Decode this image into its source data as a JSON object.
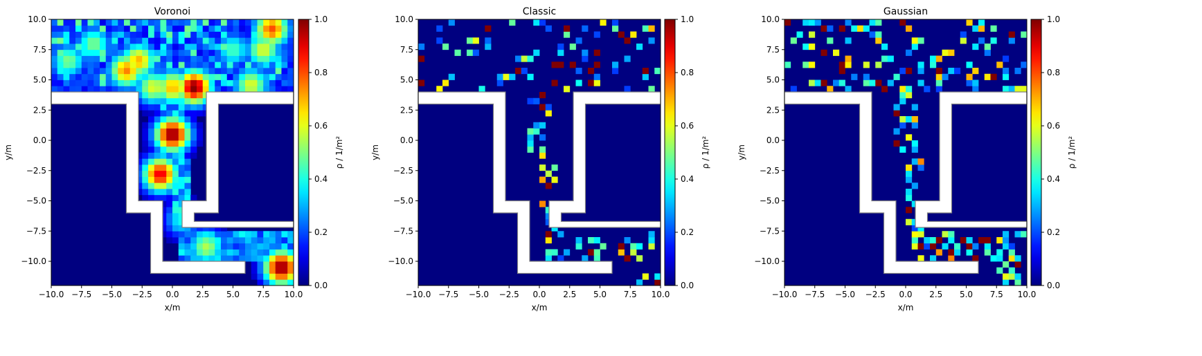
{
  "figure": {
    "title": ""
  },
  "chart_data": [
    {
      "type": "heatmap",
      "title": "Voronoi",
      "xlabel": "x/m",
      "ylabel": "y/m",
      "colorbar_label": "ρ / 1/m²",
      "xlim": [
        -10,
        10
      ],
      "ylim": [
        -12,
        10
      ],
      "xticks": [
        "−10.0",
        "−7.5",
        "−5.0",
        "−2.5",
        "0.0",
        "2.5",
        "5.0",
        "7.5",
        "10.0"
      ],
      "yticks": [
        "−10.0",
        "−7.5",
        "−5.0",
        "−2.5",
        "0.0",
        "2.5",
        "5.0",
        "7.5",
        "10.0"
      ],
      "colorbar_ticks": [
        "0.0",
        "0.2",
        "0.4",
        "0.6",
        "0.8",
        "1.0"
      ],
      "colormap": "jet",
      "vmin": 0,
      "vmax": 1,
      "grid": false,
      "hotspots": [
        {
          "x": 0.0,
          "y": 0.5,
          "v": 1.0
        },
        {
          "x": 1.8,
          "y": 4.4,
          "v": 1.0
        },
        {
          "x": -1.0,
          "y": -2.8,
          "v": 0.9
        },
        {
          "x": 9.0,
          "y": -10.5,
          "v": 1.0
        },
        {
          "x": 8.2,
          "y": 9.2,
          "v": 0.8
        },
        {
          "x": -3.8,
          "y": 5.8,
          "v": 0.75
        },
        {
          "x": -2.8,
          "y": 6.6,
          "v": 0.7
        },
        {
          "x": -6.5,
          "y": 8.0,
          "v": 0.5
        },
        {
          "x": -8.6,
          "y": 6.6,
          "v": 0.5
        },
        {
          "x": 0.0,
          "y": 4.4,
          "v": 0.7
        },
        {
          "x": -1.6,
          "y": 4.4,
          "v": 0.6
        },
        {
          "x": 7.5,
          "y": 7.5,
          "v": 0.6
        },
        {
          "x": 2.8,
          "y": -8.8,
          "v": 0.55
        },
        {
          "x": 6.5,
          "y": 4.6,
          "v": 0.6
        },
        {
          "x": 5.0,
          "y": 7.5,
          "v": 0.45
        },
        {
          "x": 0.8,
          "y": -6.5,
          "v": 0.4
        }
      ]
    },
    {
      "type": "heatmap",
      "title": "Classic",
      "xlabel": "x/m",
      "ylabel": "y/m",
      "colorbar_label": "ρ / 1/m²",
      "xlim": [
        -10,
        10
      ],
      "ylim": [
        -12,
        10
      ],
      "xticks": [
        "−10.0",
        "−7.5",
        "−5.0",
        "−2.5",
        "0.0",
        "2.5",
        "5.0",
        "7.5",
        "10.0"
      ],
      "yticks": [
        "−10.0",
        "−7.5",
        "−5.0",
        "−2.5",
        "0.0",
        "2.5",
        "5.0",
        "7.5",
        "10.0"
      ],
      "colorbar_ticks": [
        "0.0",
        "0.2",
        "0.4",
        "0.6",
        "0.8",
        "1.0"
      ],
      "colormap": "jet",
      "vmin": 0,
      "vmax": 1,
      "grid": false
    },
    {
      "type": "heatmap",
      "title": "Gaussian",
      "xlabel": "x/m",
      "ylabel": "y/m",
      "colorbar_label": "ρ / 1/m²",
      "xlim": [
        -10,
        10
      ],
      "ylim": [
        -12,
        10
      ],
      "xticks": [
        "−10.0",
        "−7.5",
        "−5.0",
        "−2.5",
        "0.0",
        "2.5",
        "5.0",
        "7.5",
        "10.0"
      ],
      "yticks": [
        "−10.0",
        "−7.5",
        "−5.0",
        "−2.5",
        "0.0",
        "2.5",
        "5.0",
        "7.5",
        "10.0"
      ],
      "colorbar_ticks": [
        "0.0",
        "0.2",
        "0.4",
        "0.6",
        "0.8",
        "1.0"
      ],
      "colormap": "jet",
      "vmin": 0,
      "vmax": 1,
      "grid": false
    }
  ],
  "geometry_walls": [
    [
      [
        -10,
        4
      ],
      [
        -3.8,
        4
      ],
      [
        -3.8,
        -5
      ],
      [
        -2.8,
        -5
      ],
      [
        -2.8,
        4
      ],
      [
        -10,
        4
      ]
    ],
    [
      [
        -10,
        4
      ],
      [
        -10,
        3
      ],
      [
        -3.8,
        3
      ]
    ],
    [
      [
        -10,
        3
      ],
      [
        -3.8,
        3
      ],
      [
        -3.8,
        -6
      ],
      [
        -1.8,
        -6
      ],
      [
        -1.8,
        -11
      ],
      [
        6,
        -11
      ],
      [
        6,
        -10
      ],
      [
        -0.8,
        -10
      ],
      [
        -0.8,
        -5
      ],
      [
        -2.8,
        -5
      ],
      [
        -2.8,
        4
      ],
      [
        -10,
        4
      ],
      [
        -10,
        3
      ]
    ],
    [
      [
        10,
        4
      ],
      [
        2.8,
        4
      ],
      [
        2.8,
        -5
      ],
      [
        0.8,
        -5
      ],
      [
        0.8,
        -7.2
      ],
      [
        10,
        -7.2
      ],
      [
        10,
        -6.7
      ],
      [
        1.8,
        -6.7
      ],
      [
        1.8,
        -6
      ],
      [
        3.8,
        -6
      ],
      [
        3.8,
        3
      ],
      [
        10,
        3
      ],
      [
        10,
        4
      ]
    ]
  ]
}
